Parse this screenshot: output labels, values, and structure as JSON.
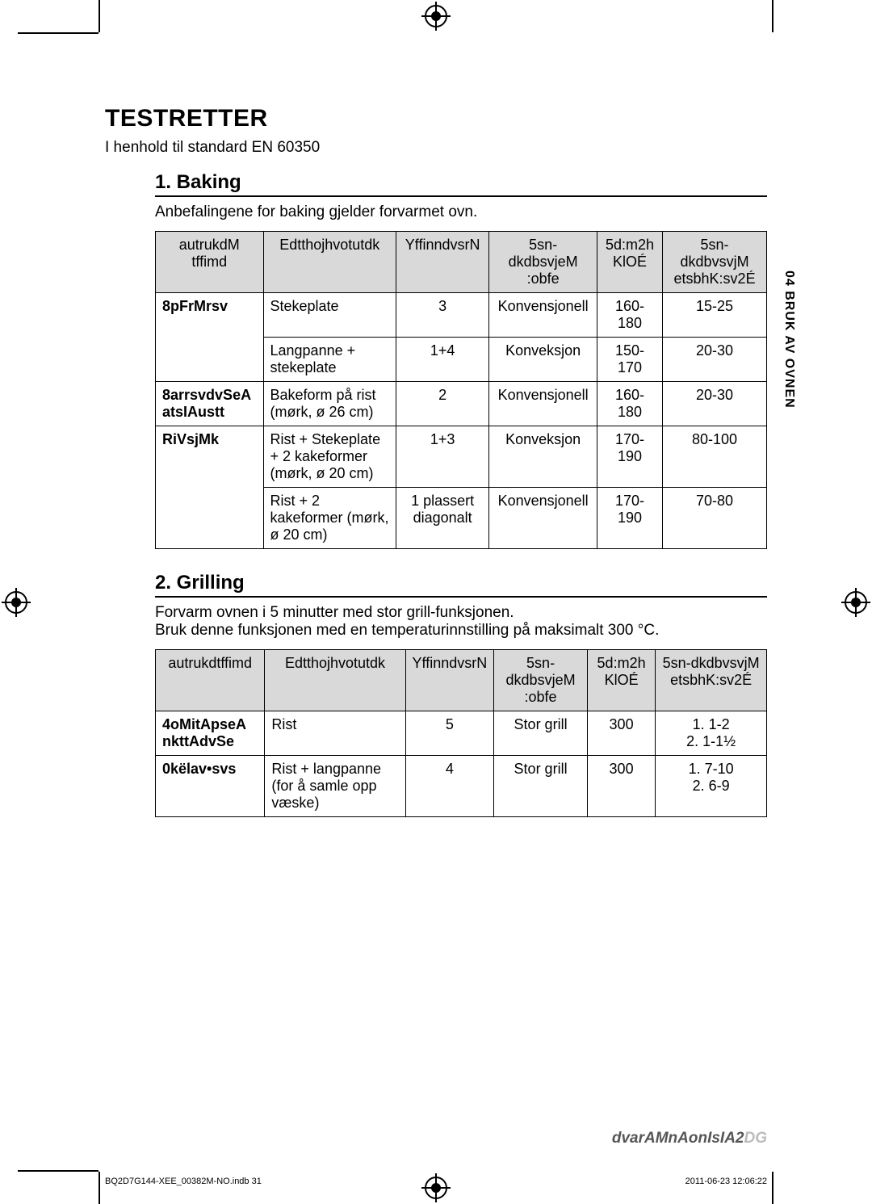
{
  "crop_marks": true,
  "title": "TESTRETTER",
  "subtitle": "I henhold til standard EN 60350",
  "side_tab": "04 BRUK AV OVNEN",
  "sections": [
    {
      "heading": "1. Baking",
      "note": "Anbefalingene for baking gjelder forvarmet ovn.",
      "columns": [
        "autrukdM tffimd",
        "Edtthojhvotutdk",
        "YffinndvsrN",
        "5sn-dkdbsvjeM :obfe",
        "5d:m2h KlOÉ",
        "5sn-dkdbvsvjM etsbhK:sv2É"
      ],
      "rows": [
        {
          "label": "8pFrMrsv",
          "c1": "Stekeplate",
          "c2": "3",
          "c3": "Konvensjonell",
          "c4": "160-180",
          "c5": "15-25"
        },
        {
          "label": "",
          "c1": "Langpanne + stekeplate",
          "c2": "1+4",
          "c3": "Konveksjon",
          "c4": "150-170",
          "c5": "20-30"
        },
        {
          "label": "8arrsvdvSeA atsIAustt",
          "c1": "Bakeform på rist (mørk, ø 26 cm)",
          "c2": "2",
          "c3": "Konvensjonell",
          "c4": "160-180",
          "c5": "20-30"
        },
        {
          "label": "RiVsjMk",
          "c1": "Rist + Stekeplate + 2 kakeformer (mørk, ø 20 cm)",
          "c2": "1+3",
          "c3": "Konveksjon",
          "c4": "170-190",
          "c5": "80-100"
        },
        {
          "label": "",
          "c1": "Rist + 2 kakeformer (mørk, ø 20 cm)",
          "c2": "1 plassert diagonalt",
          "c3": "Konvensjonell",
          "c4": "170-190",
          "c5": "70-80"
        }
      ]
    },
    {
      "heading": "2. Grilling",
      "note": "Forvarm ovnen i 5 minutter med stor grill-funksjonen.\nBruk denne funksjonen med en temperaturinnstilling på maksimalt 300 °C.",
      "columns": [
        "autrukdtffimd",
        "Edtthojhvotutdk",
        "YffinndvsrN",
        "5sn-dkdbsvjeM :obfe",
        "5d:m2h KlOÉ",
        "5sn-dkdbvsvjM etsbhK:sv2É"
      ],
      "rows": [
        {
          "label": "4oMitApseA nkttAdvSe",
          "c1": "Rist",
          "c2": "5",
          "c3": "Stor grill",
          "c4": "300",
          "c5": "1. 1-2\n2. 1-1½"
        },
        {
          "label": "0këlav•svs",
          "c1": "Rist + langpanne (for å samle opp væske)",
          "c2": "4",
          "c3": "Stor grill",
          "c4": "300",
          "c5": "1. 7-10\n2. 6-9"
        }
      ]
    }
  ],
  "footer_right_text": "dvarAMnAonIsIA2",
  "footer_right_num": "DG",
  "footer_file": "BQ2D7G144-XEE_00382M-NO.indb   31",
  "footer_date": "2011-06-23   12:06:22",
  "colors": {
    "header_bg": "#d9d9d9",
    "text": "#000000",
    "footer_gray": "#555555",
    "footer_light": "#bbbbbb"
  }
}
